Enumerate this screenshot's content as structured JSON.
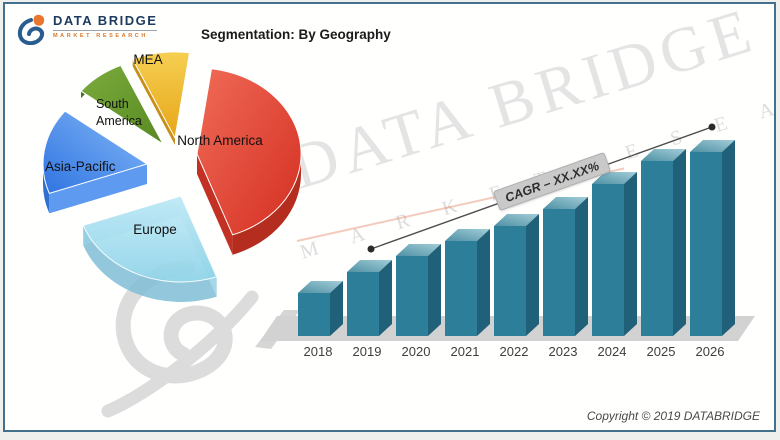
{
  "brand": {
    "name": "DATA BRIDGE",
    "tagline": "MARKET RESEARCH"
  },
  "header": {
    "title": "Segmentation: By Geography"
  },
  "watermark": {
    "line1": "DATA BRIDGE",
    "line2": "M A R K E T  R E S E A R C H"
  },
  "pie_labels": {
    "north_america": "North America",
    "europe": "Europe",
    "asia_pacific": "Asia-Pacific",
    "south_america_line1": "South",
    "south_america_line2": "America",
    "mea": "MEA"
  },
  "cagr": {
    "label": "CAGR – XX.XX%"
  },
  "footer": {
    "copyright": "Copyright © 2019 DATABRIDGE"
  },
  "colors": {
    "north_america": "#dc3527",
    "europe": "#9ed9ec",
    "asia_pacific": "#3c82e8",
    "south_america": "#649427",
    "mea": "#edb722",
    "bar_front": "#2d7f99",
    "bar_side": "#206078",
    "bar_top": "#79aebc",
    "frame_border": "#44708e",
    "floor": "#d2d2d2"
  },
  "chart_data": [
    {
      "type": "pie",
      "title": "Segmentation: By Geography",
      "labels": [
        "North America",
        "Europe",
        "Asia-Pacific",
        "South America",
        "MEA"
      ],
      "values_pct_estimated": [
        42,
        25,
        16,
        8,
        9
      ],
      "style": "3d-exploded",
      "legend_position": "on-slice labels",
      "colors": [
        "#dc3527",
        "#9ed9ec",
        "#3c82e8",
        "#649427",
        "#edb722"
      ]
    },
    {
      "type": "bar",
      "categories": [
        "2018",
        "2019",
        "2020",
        "2021",
        "2022",
        "2023",
        "2024",
        "2025",
        "2026"
      ],
      "values_relative": [
        43,
        64,
        80,
        95,
        110,
        127,
        152,
        175,
        184
      ],
      "ylabel": "",
      "xlabel": "",
      "axis_values_shown": false,
      "style": "3d-column, teal, gray floor",
      "annotation": "CAGR – XX.XX% trend line rising from 2019 to 2026"
    }
  ]
}
